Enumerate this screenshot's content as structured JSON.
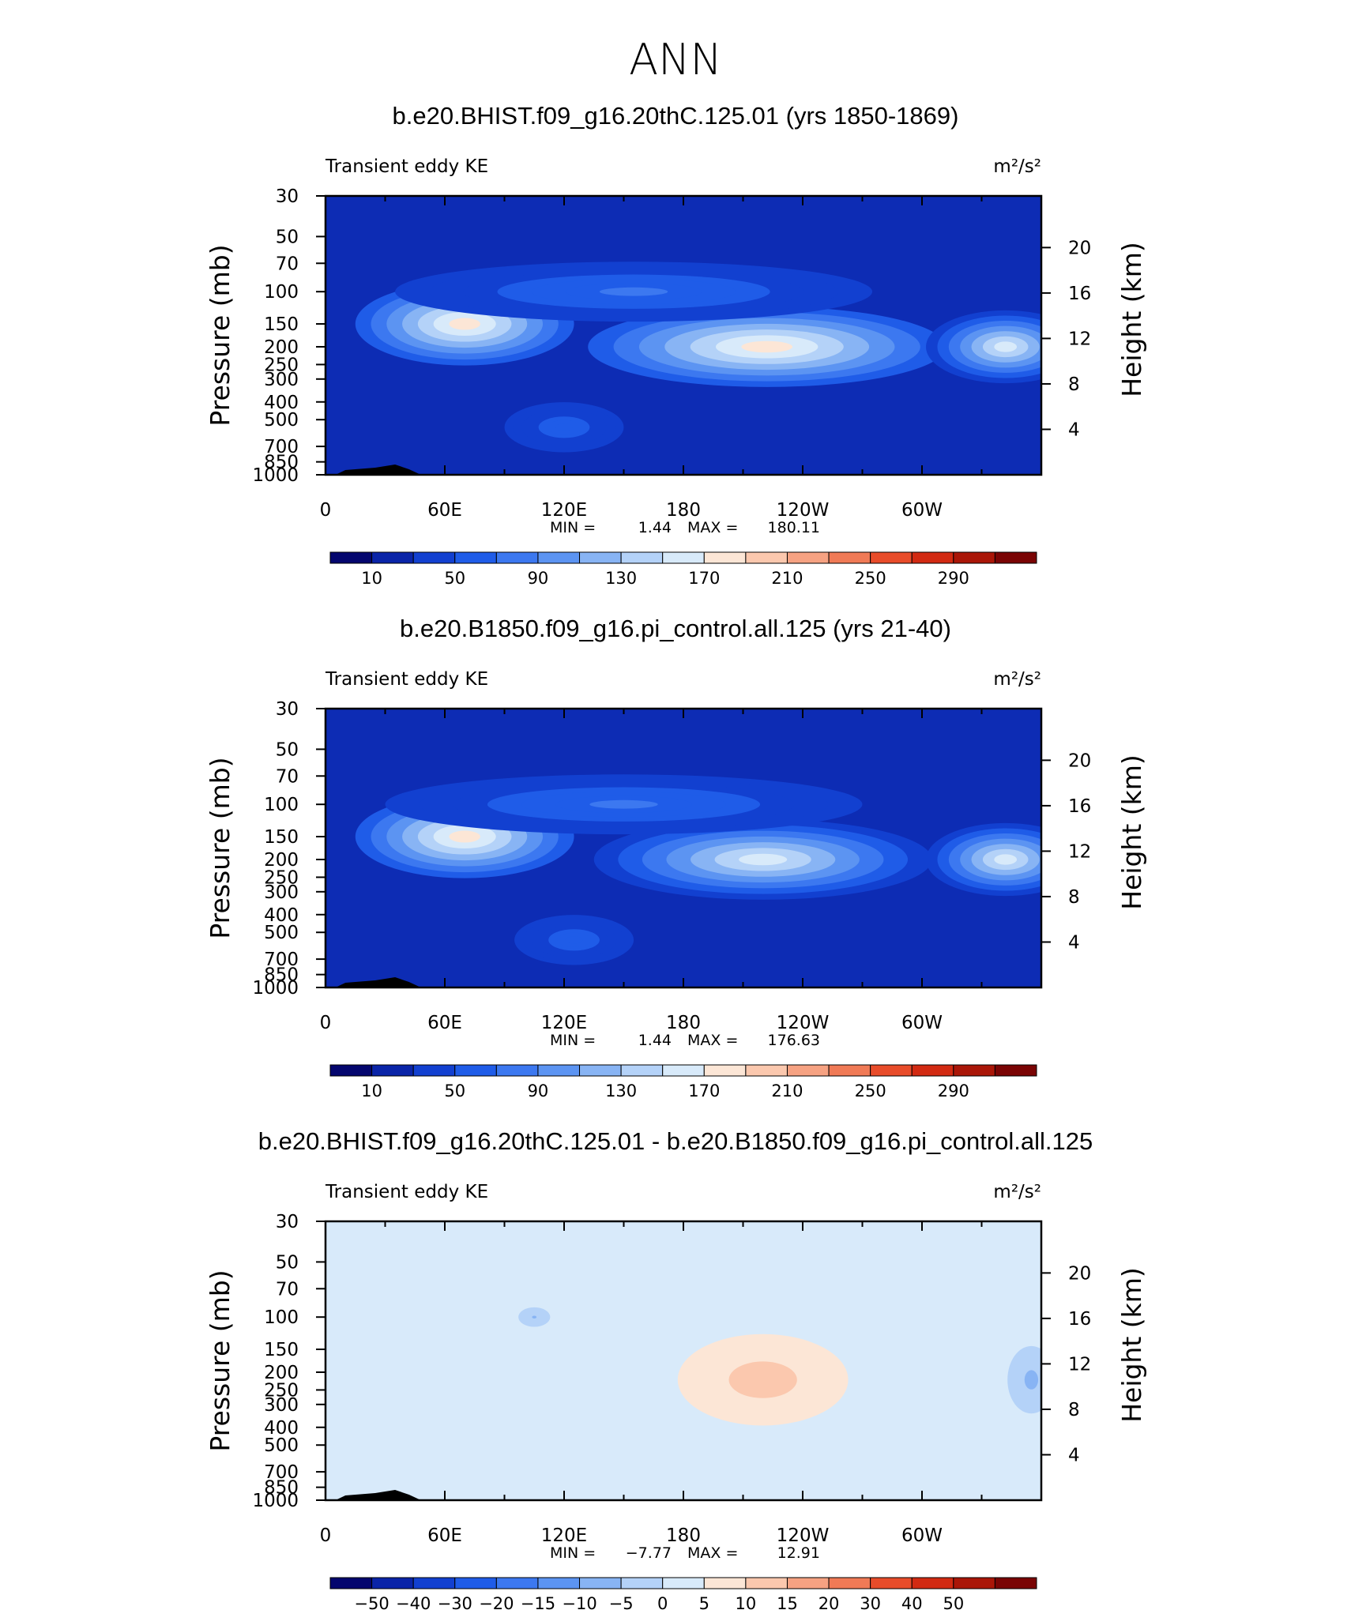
{
  "figure": {
    "title": "ANN"
  },
  "chart_data": [
    {
      "type": "heatmap",
      "title": "b.e20.BHIST.f09_g16.20thC.125.01 (yrs 1850-1869)",
      "subtitle_left": "Transient eddy KE",
      "units": "m²/s²",
      "ylabel": "Pressure (mb)",
      "ylabel_right": "Height (km)",
      "x_ticks": [
        "0",
        "60E",
        "120E",
        "180",
        "120W",
        "60W"
      ],
      "y_ticks": [
        "30",
        "50",
        "70",
        "100",
        "150",
        "200",
        "250",
        "300",
        "400",
        "500",
        "700",
        "850",
        "1000"
      ],
      "y_ticks_right": [
        "20",
        "16",
        "12",
        "8",
        "4"
      ],
      "min_label": "MIN =",
      "min": "1.44",
      "max_label": "MAX =",
      "max": "180.11",
      "colorbar_labels": [
        "10",
        "50",
        "90",
        "130",
        "170",
        "210",
        "250",
        "290"
      ],
      "colorbar_colors": [
        "#04066e",
        "#0a24a8",
        "#1240d0",
        "#1f5ce8",
        "#3c78f0",
        "#5c94f2",
        "#88b4f4",
        "#b4d2f8",
        "#d8eafa",
        "#fce6d6",
        "#fbc8ae",
        "#f6a282",
        "#f07a56",
        "#e84c2a",
        "#d22a12",
        "#aa1608",
        "#7a0404"
      ],
      "background_color": "#0d2cb4",
      "blobs": [
        {
          "lon": 70,
          "p": 150,
          "peak": 180.11,
          "lon_width": 55,
          "p_top": 95,
          "p_bottom": 270
        },
        {
          "lon": 222,
          "p": 200,
          "peak": 170,
          "lon_width": 90,
          "p_top": 120,
          "p_bottom": 330
        },
        {
          "lon": 342,
          "p": 200,
          "peak": 150,
          "lon_width": 40,
          "p_top": 120,
          "p_bottom": 300
        },
        {
          "lon": 155,
          "p": 100,
          "peak": 70,
          "lon_width": 120,
          "p_top": 80,
          "p_bottom": 170
        },
        {
          "lon": 120,
          "p": 550,
          "peak": 60,
          "lon_width": 30,
          "p_top": 400,
          "p_bottom": 750
        }
      ]
    },
    {
      "type": "heatmap",
      "title": "b.e20.B1850.f09_g16.pi_control.all.125 (yrs 21-40)",
      "subtitle_left": "Transient eddy KE",
      "units": "m²/s²",
      "ylabel": "Pressure (mb)",
      "ylabel_right": "Height (km)",
      "x_ticks": [
        "0",
        "60E",
        "120E",
        "180",
        "120W",
        "60W"
      ],
      "y_ticks": [
        "30",
        "50",
        "70",
        "100",
        "150",
        "200",
        "250",
        "300",
        "400",
        "500",
        "700",
        "850",
        "1000"
      ],
      "y_ticks_right": [
        "20",
        "16",
        "12",
        "8",
        "4"
      ],
      "min_label": "MIN =",
      "min": "1.44",
      "max_label": "MAX =",
      "max": "176.63",
      "colorbar_labels": [
        "10",
        "50",
        "90",
        "130",
        "170",
        "210",
        "250",
        "290"
      ],
      "colorbar_colors": [
        "#04066e",
        "#0a24a8",
        "#1240d0",
        "#1f5ce8",
        "#3c78f0",
        "#5c94f2",
        "#88b4f4",
        "#b4d2f8",
        "#d8eafa",
        "#fce6d6",
        "#fbc8ae",
        "#f6a282",
        "#f07a56",
        "#e84c2a",
        "#d22a12",
        "#aa1608",
        "#7a0404"
      ],
      "background_color": "#0d2cb4",
      "blobs": [
        {
          "lon": 70,
          "p": 150,
          "peak": 176.63,
          "lon_width": 55,
          "p_top": 95,
          "p_bottom": 270
        },
        {
          "lon": 220,
          "p": 200,
          "peak": 160,
          "lon_width": 85,
          "p_top": 120,
          "p_bottom": 330
        },
        {
          "lon": 342,
          "p": 200,
          "peak": 150,
          "lon_width": 40,
          "p_top": 120,
          "p_bottom": 300
        },
        {
          "lon": 150,
          "p": 100,
          "peak": 70,
          "lon_width": 120,
          "p_top": 80,
          "p_bottom": 170
        },
        {
          "lon": 125,
          "p": 550,
          "peak": 60,
          "lon_width": 30,
          "p_top": 400,
          "p_bottom": 750
        }
      ]
    },
    {
      "type": "heatmap",
      "title": "b.e20.BHIST.f09_g16.20thC.125.01 - b.e20.B1850.f09_g16.pi_control.all.125",
      "subtitle_left": "Transient eddy KE",
      "units": "m²/s²",
      "ylabel": "Pressure (mb)",
      "ylabel_right": "Height (km)",
      "x_ticks": [
        "0",
        "60E",
        "120E",
        "180",
        "120W",
        "60W"
      ],
      "y_ticks": [
        "30",
        "50",
        "70",
        "100",
        "150",
        "200",
        "250",
        "300",
        "400",
        "500",
        "700",
        "850",
        "1000"
      ],
      "y_ticks_right": [
        "20",
        "16",
        "12",
        "8",
        "4"
      ],
      "min_label": "MIN =",
      "min": "−7.77",
      "max_label": "MAX =",
      "max": "12.91",
      "colorbar_labels": [
        "−50",
        "−40",
        "−30",
        "−20",
        "−15",
        "−10",
        "−5",
        "0",
        "5",
        "10",
        "15",
        "20",
        "30",
        "40",
        "50"
      ],
      "colorbar_colors": [
        "#04066e",
        "#0a24a8",
        "#1240d0",
        "#1f5ce8",
        "#3c78f0",
        "#5c94f2",
        "#88b4f4",
        "#b4d2f8",
        "#d8eafa",
        "#fce6d6",
        "#fbc8ae",
        "#f6a282",
        "#f07a56",
        "#e84c2a",
        "#d22a12",
        "#aa1608",
        "#7a0404"
      ],
      "background_color": "#d8eafa",
      "blobs": [
        {
          "lon": 220,
          "p": 220,
          "peak": 12.91,
          "lon_width": 60,
          "p_top": 100,
          "p_bottom": 500
        },
        {
          "lon": 90,
          "p": 300,
          "peak": 4,
          "lon_width": 40,
          "p_top": 70,
          "p_bottom": 900
        },
        {
          "lon": 325,
          "p": 150,
          "peak": 3,
          "lon_width": 25,
          "p_top": 100,
          "p_bottom": 300
        },
        {
          "lon": 105,
          "p": 100,
          "peak": -5.5,
          "lon_width": 8,
          "p_top": 90,
          "p_bottom": 115
        },
        {
          "lon": 355,
          "p": 220,
          "peak": -6,
          "lon_width": 12,
          "p_top": 150,
          "p_bottom": 350
        }
      ]
    }
  ]
}
